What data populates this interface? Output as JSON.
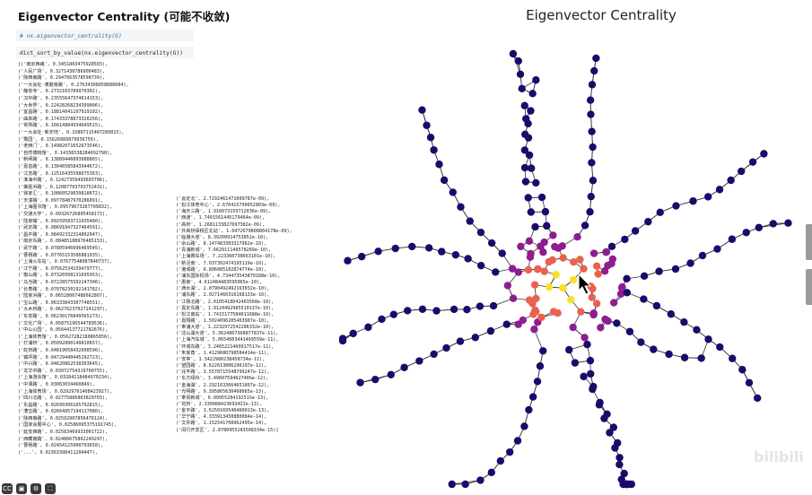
{
  "heading": "Eigenvector Centrality (可能不收敛)",
  "cells": {
    "comment": "# nx.eigenvector_centrality(G)",
    "code": "dict_sort_by_value(nx.eigenvector_centrality(G))"
  },
  "output_left": [
    "[('南京西路', 0.3451803475928503),",
    " ('人民广场', 0.3271430786900483),",
    " ('陕西南路', 0.2947663578590739),",
    " ('一大会址·黄陂南路', 0.27634308858888684),",
    " ('静安寺', 0.2732103789970302),",
    " ('汉中路', 0.23555647374614153),",
    " ('大世界', 0.22428268234399006),",
    " ('宜昌路', 0.18814041107919102),",
    " ('曲阜路', 0.17433378873326256),",
    " ('常熟路', 0.16614884934649515),",
    " ('一大会址·新天地', 0.15807115407289815),",
    " ('豫园', 0.15626889879936756),",
    " ('老西门', 0.14982071652673546),",
    " ('自然博物馆', 0.14336538284092798),",
    " ('新闸路', 0.13889446893088865),",
    " ('嘉善路', 0.13046585843944672),",
    " ('江苏路', 0.12516435598675363),",
    " ('淮海中路', 0.12427359493693706),",
    " ('肇嘉浜路', 0.12087703703752431),",
    " ('徐家汇', 0.10860529839818672),",
    " ('天潼路', 0.09778487970286091),",
    " ('上海图书馆', 0.09579673267709832),",
    " ('交通大学', 0.09326726805458173),",
    " ('陆家嘴', 0.09259583711035480),",
    " ('武定路', 0.08691847327464591),",
    " ('昌平路', 0.08492332314892047),",
    " ('南京东路', 0.08485188976485153),",
    " ('武宁路', 0.07805946996469545),",
    " ('曹杨路', 0.07765153506881935),",
    " ('上海火车站', 0.07677548087840737),",
    " ('江宁路', 0.07562534159479777),",
    " ('衡山路', 0.07326508131695953),",
    " ('马当路', 0.07228575502247306),",
    " ('长寿路', 0.07078230192141782),",
    " ('陆家浜路', 0.06528067486662807),",
    " ('宝山路', 0.06333843307748551),",
    " ('大木桥路', 0.06276237027241297),",
    " ('东安路', 0.06230176849565273),",
    " ('文化广场', 0.05875196544789536),",
    " ('中山公园', 0.05644137721782676),",
    " ('上海体育馆', 0.05627282180865856),",
    " ('打浦桥', 0.05092890149810657),",
    " ('虹桥路', 0.04819058432098596),",
    " ('镇坪路', 0.04729440445192723),",
    " ('中兴路', 0.04620862538303645),",
    " ('龙华中路', 0.03972754319700755),",
    " ('上海游泳馆', 0.03284218484970234),",
    " ('中潭路', 0.03063034460849),",
    " ('上海体育场', 0.02929761408423927),",
    " ('四川北路', 0.02775806863829703),",
    " ('东昌路', 0.02699306165792815),",
    " ('漕宝路', 0.02664857194117080),",
    " ('陕西南路', 0.02592907856476124),",
    " ('国家会展中心', 0.02586095375191745),",
    " ('延安西路', 0.02583469933001722),",
    " ('西藏南路', 0.02480675862249297),",
    " ('曹杨路', 0.02454125900793658),",
    " ('...', 0.02363398411204447),"
  ],
  "output_right": [
    " ('嘉定北', 2.7292461471009787e-09),",
    " ('松江体育中心', 2.670415790052803e-09),",
    " ('海天三路', 1.916073159712036e-09),",
    " ('西渡', 1.7401561445179464e-09),",
    " ('高桥', 1.2681133827697382e-09),",
    " ('外高桥保税区北站', 1.0472670808864178e-09),",
    " ('临港大道', 8.39200914753852e-10),",
    " ('佘山路', 8.147483303317962e-10),",
    " ('青浦新城', 7.662911149578269e-10),",
    " ('上海赛车场', 7.223360738663101e-10),",
    " ('新泾南', 7.037302474195119e-10),",
    " ('港城路', 6.806085102874774e-10),",
    " ('浦东国际机场', 4.734473543870188e-10),",
    " ('惠南', 4.612484483595065e-10),",
    " ('滴水湖', 2.0790492492163032e-10),",
    " ('浦东路', 2.0271460316168133e-10),",
    " ('江杨北路', 2.0105418042463568e-10),",
    " ('嘉定东路', 1.9124492985510137e-10),",
    " ('松江南站', 1.7415177584011688e-10),",
    " ('嘉翔路', 1.5024096205463907e-10),",
    " ('奉浦大道', 1.2232972542286332e-10),",
    " ('沈山湖大道', 5.3624867368877837e-11),",
    " ('上海汽车城', 5.0654663441499559e-11),",
    " ('环城东路', 3.2465221460917517e-11),",
    " ('朱家角', 1.4129680798584414e-11),",
    " ('安亭', 1.3422980238458734e-11),",
    " ('望园路', 8.622613806296197e-12),",
    " ('兆丰路', 3.5578715548799247e-12),",
    " ('东方绿舟', 3.4960759462740Ge-12),",
    " ('金海湖', 2.2921633664651897e-12),",
    " ('光明路', 9.395865630498065e-13),",
    " ('奉贤新城', 6.0995528419251Se-13),",
    " ('花桥', 2.3300884236934IIe-13),",
    " ('金平路', 1.6250169546460013e-13),",
    " ('华宁路', 4.333913458880084e-14),",
    " ('文井路', 1.152541708962495e-14),",
    " ('闵行开发区', 2.8780955283508334e-15)]"
  ],
  "graph": {
    "title": "Eigenvector Centrality",
    "colors": {
      "low": "#1b0a6b",
      "mid": "#8e1d8f",
      "high": "#e8624f",
      "top": "#f6e12a",
      "edge": "#333333"
    }
  },
  "toolbar": [
    "CC",
    "▣",
    "⚙",
    "⛶"
  ],
  "watermark": "bilibili"
}
